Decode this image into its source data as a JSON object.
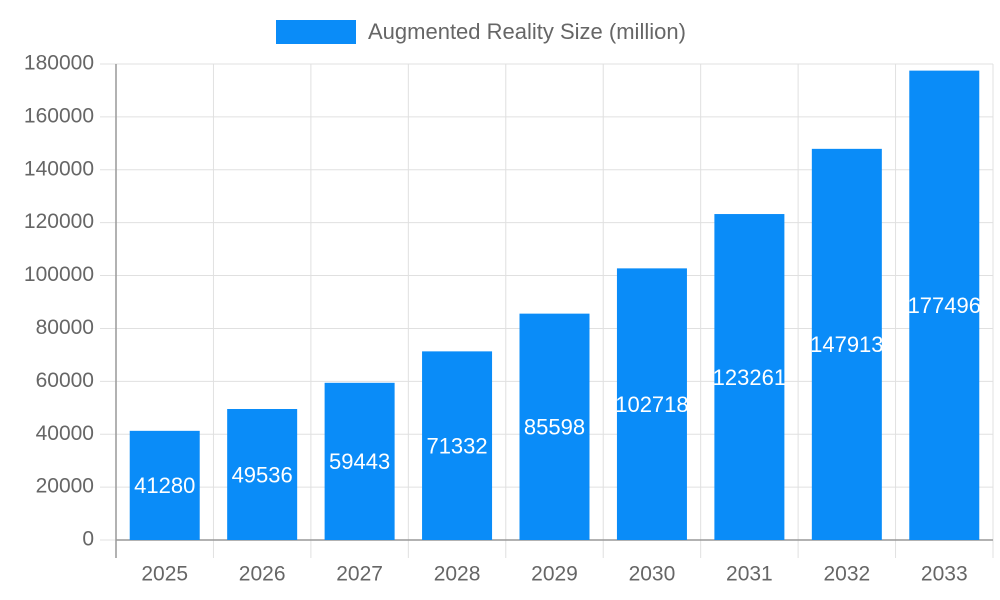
{
  "chart_data": {
    "type": "bar",
    "categories": [
      "2025",
      "2026",
      "2027",
      "2028",
      "2029",
      "2030",
      "2031",
      "2032",
      "2033"
    ],
    "series": [
      {
        "name": "Augmented Reality Size (million)",
        "color": "#0a8cf8",
        "values": [
          41280,
          49536,
          59443,
          71332,
          85598,
          102718,
          123261,
          147913,
          177496
        ]
      }
    ],
    "ylim": [
      0,
      180000
    ],
    "yticks": [
      0,
      20000,
      40000,
      60000,
      80000,
      100000,
      120000,
      140000,
      160000,
      180000
    ],
    "grid": true,
    "legend": "top"
  }
}
